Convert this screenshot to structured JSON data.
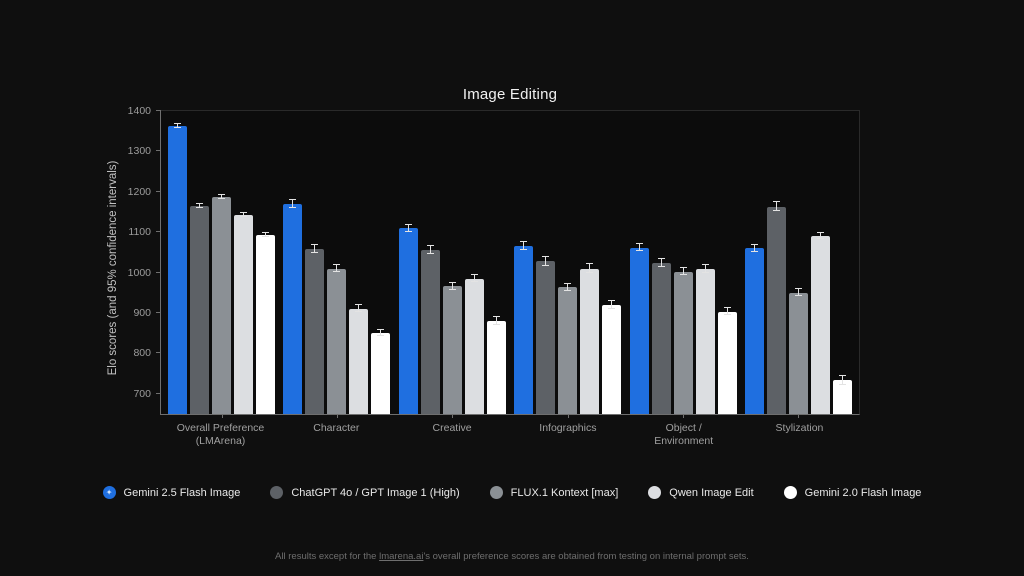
{
  "title": "Image Editing",
  "ylabel": "Elo scores (and 95% confidence intervals)",
  "footer": {
    "prefix": "All results except for the ",
    "link_text": "lmarena.ai",
    "suffix": "'s overall preference scores are obtained from testing on internal prompt sets."
  },
  "colors": {
    "background": "#0f0f0f",
    "accent_blue": "#1f6fe0",
    "dark_gray": "#5d6166",
    "medium_gray": "#8b9095",
    "light_gray": "#dcdee1",
    "white": "#ffffff",
    "error_bar": "#e3e3e3"
  },
  "legend_icons": [
    "gemini-spark-icon",
    "dot",
    "dot",
    "dot",
    "dot"
  ],
  "chart_data": {
    "type": "bar",
    "title": "Image Editing",
    "xlabel": "",
    "ylabel": "Elo scores (and 95% confidence intervals)",
    "ylim": [
      650,
      1400
    ],
    "yticks": [
      700,
      800,
      900,
      1000,
      1100,
      1200,
      1300,
      1400
    ],
    "grid": false,
    "legend_position": "bottom",
    "error_bars": "95% confidence intervals",
    "categories": [
      "Overall Preference\n(LMArena)",
      "Character",
      "Creative",
      "Infographics",
      "Object /\nEnvironment",
      "Stylization"
    ],
    "series": [
      {
        "name": "Gemini 2.5 Flash Image",
        "color": "#1f6fe0",
        "values": [
          1362,
          1170,
          1110,
          1066,
          1062,
          1060
        ],
        "errors": [
          5,
          9,
          9,
          9,
          9,
          9
        ]
      },
      {
        "name": "ChatGPT 4o / GPT Image 1 (High)",
        "color": "#5d6166",
        "values": [
          1166,
          1058,
          1055,
          1028,
          1024,
          1163
        ],
        "errors": [
          5,
          10,
          10,
          11,
          10,
          11
        ]
      },
      {
        "name": "FLUX.1 Kontext [max]",
        "color": "#8b9095",
        "values": [
          1188,
          1010,
          966,
          964,
          1002,
          950
        ],
        "errors": [
          5,
          9,
          9,
          9,
          9,
          9
        ]
      },
      {
        "name": "Qwen Image Edit",
        "color": "#dcdee1",
        "values": [
          1143,
          911,
          985,
          1010,
          1009,
          1090
        ],
        "errors": [
          5,
          9,
          9,
          11,
          11,
          8
        ]
      },
      {
        "name": "Gemini 2.0 Flash Image",
        "color": "#ffffff",
        "values": [
          1092,
          851,
          880,
          920,
          903,
          733
        ],
        "errors": [
          5,
          8,
          9,
          9,
          9,
          11
        ]
      }
    ]
  }
}
